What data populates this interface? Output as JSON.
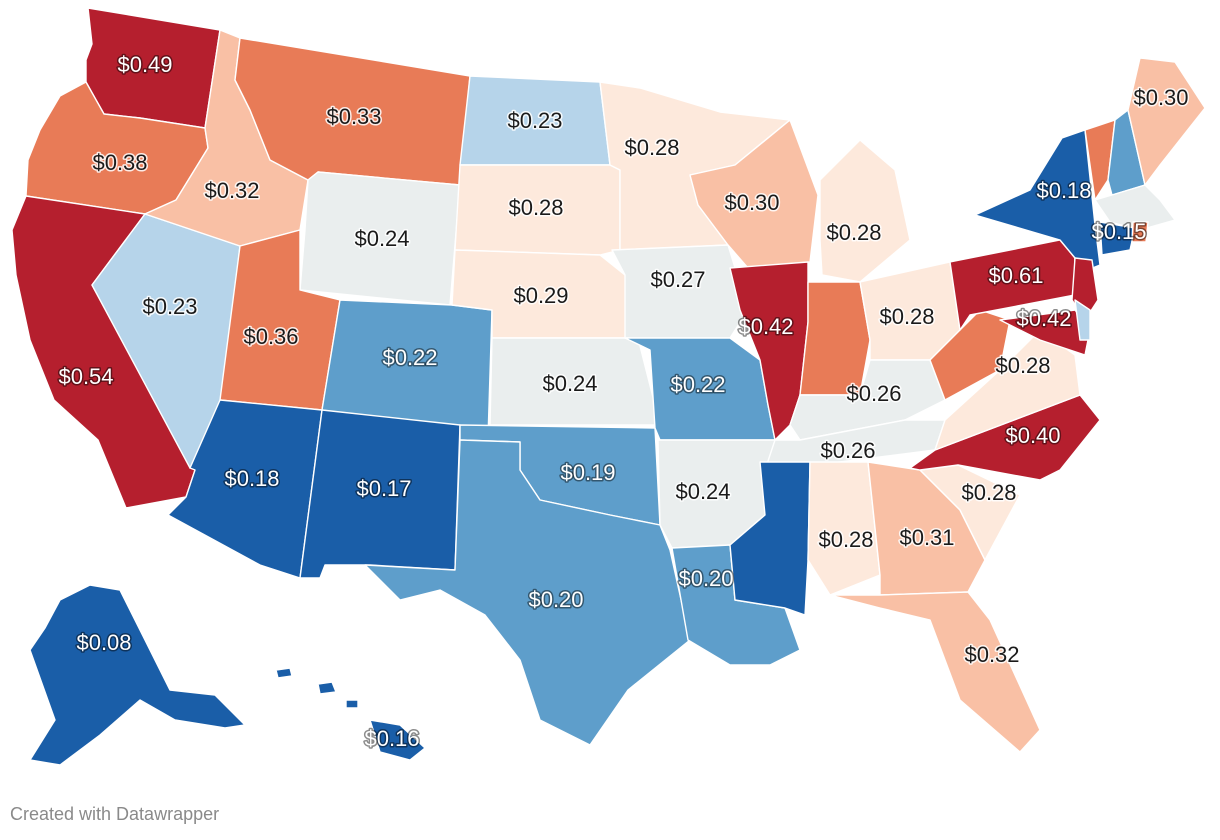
{
  "map": {
    "type": "choropleth",
    "region": "United States",
    "color_scale": {
      "lowest": "#1a5ea8",
      "low": "#5e9ecb",
      "below_mid": "#b6d4ea",
      "mid": "#eaeeee",
      "above_mid": "#fde9dc",
      "high": "#f9c0a5",
      "higher": "#e87b57",
      "highest": "#b51f2e"
    },
    "states": [
      {
        "name": "WA",
        "label": "$0.49",
        "value": 0.49,
        "color": "#b51f2e"
      },
      {
        "name": "OR",
        "label": "$0.38",
        "value": 0.38,
        "color": "#e87b57"
      },
      {
        "name": "CA",
        "label": "$0.54",
        "value": 0.54,
        "color": "#b51f2e"
      },
      {
        "name": "NV",
        "label": "$0.23",
        "value": 0.23,
        "color": "#b6d4ea"
      },
      {
        "name": "ID",
        "label": "$0.32",
        "value": 0.32,
        "color": "#f9c0a5"
      },
      {
        "name": "MT",
        "label": "$0.33",
        "value": 0.33,
        "color": "#e87b57"
      },
      {
        "name": "WY",
        "label": "$0.24",
        "value": 0.24,
        "color": "#eaeeee"
      },
      {
        "name": "UT",
        "label": "$0.36",
        "value": 0.36,
        "color": "#e87b57"
      },
      {
        "name": "AZ",
        "label": "$0.18",
        "value": 0.18,
        "color": "#1a5ea8"
      },
      {
        "name": "CO",
        "label": "$0.22",
        "value": 0.22,
        "color": "#5e9ecb"
      },
      {
        "name": "NM",
        "label": "$0.17",
        "value": 0.17,
        "color": "#1a5ea8"
      },
      {
        "name": "ND",
        "label": "$0.23",
        "value": 0.23,
        "color": "#b6d4ea"
      },
      {
        "name": "SD",
        "label": "$0.28",
        "value": 0.28,
        "color": "#fde9dc"
      },
      {
        "name": "NE",
        "label": "$0.29",
        "value": 0.29,
        "color": "#fde9dc"
      },
      {
        "name": "KS",
        "label": "$0.24",
        "value": 0.24,
        "color": "#eaeeee"
      },
      {
        "name": "OK",
        "label": "$0.19",
        "value": 0.19,
        "color": "#5e9ecb"
      },
      {
        "name": "TX",
        "label": "$0.20",
        "value": 0.2,
        "color": "#5e9ecb"
      },
      {
        "name": "MN",
        "label": "$0.28",
        "value": 0.28,
        "color": "#fde9dc"
      },
      {
        "name": "IA",
        "label": "$0.27",
        "value": 0.27,
        "color": "#eaeeee"
      },
      {
        "name": "MO",
        "label": "$0.22",
        "value": 0.22,
        "color": "#5e9ecb"
      },
      {
        "name": "AR",
        "label": "$0.24",
        "value": 0.24,
        "color": "#eaeeee"
      },
      {
        "name": "LA",
        "label": "$0.20",
        "value": 0.2,
        "color": "#5e9ecb"
      },
      {
        "name": "WI",
        "label": "$0.30",
        "value": 0.3,
        "color": "#f9c0a5"
      },
      {
        "name": "IL",
        "label": "$0.42",
        "value": 0.42,
        "color": "#b51f2e"
      },
      {
        "name": "MI",
        "label": "$0.28",
        "value": 0.28,
        "color": "#fde9dc"
      },
      {
        "name": "IN",
        "label": "",
        "value": null,
        "color": "#e87b57"
      },
      {
        "name": "OH",
        "label": "$0.28",
        "value": 0.28,
        "color": "#fde9dc"
      },
      {
        "name": "KY",
        "label": "$0.26",
        "value": 0.26,
        "color": "#eaeeee"
      },
      {
        "name": "TN",
        "label": "$0.26",
        "value": 0.26,
        "color": "#eaeeee"
      },
      {
        "name": "MS",
        "label": "",
        "value": null,
        "color": "#1a5ea8"
      },
      {
        "name": "AL",
        "label": "$0.28",
        "value": 0.28,
        "color": "#fde9dc"
      },
      {
        "name": "GA",
        "label": "$0.31",
        "value": 0.31,
        "color": "#f9c0a5"
      },
      {
        "name": "FL",
        "label": "$0.32",
        "value": 0.32,
        "color": "#f9c0a5"
      },
      {
        "name": "SC",
        "label": "$0.28",
        "value": 0.28,
        "color": "#fde9dc"
      },
      {
        "name": "NC",
        "label": "$0.40",
        "value": 0.4,
        "color": "#b51f2e"
      },
      {
        "name": "VA",
        "label": "$0.28",
        "value": 0.28,
        "color": "#fde9dc"
      },
      {
        "name": "WV",
        "label": "",
        "value": null,
        "color": "#e87b57"
      },
      {
        "name": "PA",
        "label": "$0.61",
        "value": 0.61,
        "color": "#b51f2e"
      },
      {
        "name": "NY",
        "label": "$0.18",
        "value": 0.18,
        "color": "#1a5ea8"
      },
      {
        "name": "NJ",
        "label": "",
        "value": null,
        "color": "#b51f2e"
      },
      {
        "name": "MD",
        "label": "$0.42",
        "value": 0.42,
        "color": "#b51f2e"
      },
      {
        "name": "DE",
        "label": "",
        "value": null,
        "color": "#b6d4ea"
      },
      {
        "name": "VT",
        "label": "",
        "value": null,
        "color": "#e87b57"
      },
      {
        "name": "NH",
        "label": "",
        "value": null,
        "color": "#5e9ecb"
      },
      {
        "name": "ME",
        "label": "$0.30",
        "value": 0.3,
        "color": "#f9c0a5"
      },
      {
        "name": "MA",
        "label": "",
        "value": null,
        "color": "#eaeeee"
      },
      {
        "name": "CT",
        "label": "$0.15",
        "value": 0.15,
        "color": "#1a5ea8"
      },
      {
        "name": "RI",
        "label": "",
        "value": null,
        "color": "#e87b57"
      },
      {
        "name": "AK",
        "label": "$0.08",
        "value": 0.08,
        "color": "#1a5ea8"
      },
      {
        "name": "HI",
        "label": "$0.16",
        "value": 0.16,
        "color": "#1a5ea8"
      }
    ]
  },
  "footer": {
    "credit": "Created with Datawrapper"
  }
}
